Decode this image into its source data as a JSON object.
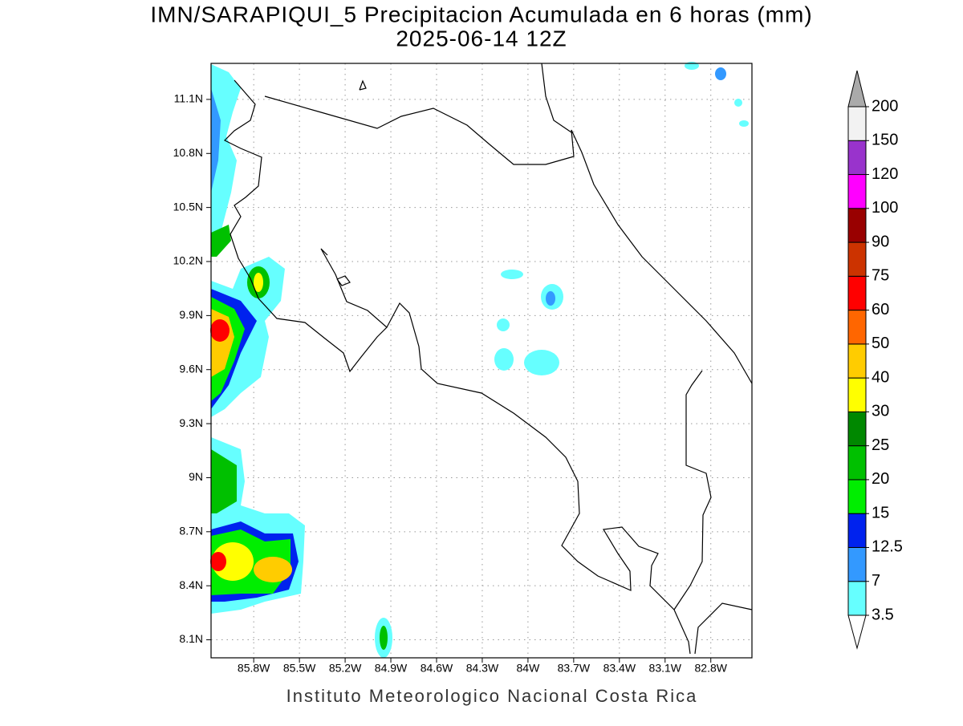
{
  "title": "IMN/SARAPIQUI_5 Precipitacion Acumulada en 6 horas (mm)",
  "subtitle": "2025-06-14 12Z",
  "footer": "Instituto Meteorologico Nacional Costa Rica",
  "map": {
    "lonlim": [
      -86.08,
      -82.53
    ],
    "latlim": [
      8.0,
      11.3
    ],
    "lon_ticks": [
      {
        "value": -85.8,
        "label": "85.8W"
      },
      {
        "value": -85.5,
        "label": "85.5W"
      },
      {
        "value": -85.2,
        "label": "85.2W"
      },
      {
        "value": -84.9,
        "label": "84.9W"
      },
      {
        "value": -84.6,
        "label": "84.6W"
      },
      {
        "value": -84.3,
        "label": "84.3W"
      },
      {
        "value": -84.0,
        "label": "84W"
      },
      {
        "value": -83.7,
        "label": "83.7W"
      },
      {
        "value": -83.4,
        "label": "83.4W"
      },
      {
        "value": -83.1,
        "label": "83.1W"
      },
      {
        "value": -82.8,
        "label": "82.8W"
      }
    ],
    "lat_ticks": [
      {
        "value": 11.1,
        "label": "11.1N"
      },
      {
        "value": 10.8,
        "label": "10.8N"
      },
      {
        "value": 10.5,
        "label": "10.5N"
      },
      {
        "value": 10.2,
        "label": "10.2N"
      },
      {
        "value": 9.9,
        "label": "9.9N"
      },
      {
        "value": 9.6,
        "label": "9.6N"
      },
      {
        "value": 9.3,
        "label": "9.3N"
      },
      {
        "value": 9.0,
        "label": "9N"
      },
      {
        "value": 8.7,
        "label": "8.7N"
      },
      {
        "value": 8.4,
        "label": "8.4N"
      },
      {
        "value": 8.1,
        "label": "8.1N"
      }
    ]
  },
  "colorbar": {
    "levels": [
      3.5,
      7,
      12.5,
      15,
      20,
      25,
      30,
      40,
      50,
      60,
      75,
      90,
      100,
      120,
      150,
      200
    ],
    "colors": [
      "#ffffff",
      "#66ffff",
      "#3399ff",
      "#0022ee",
      "#00ee00",
      "#00c000",
      "#008800",
      "#ffff00",
      "#ffcc00",
      "#ff6600",
      "#ff0000",
      "#cc3300",
      "#990000",
      "#ff00ff",
      "#9933cc",
      "#f2f2f2",
      "#aaaaaa"
    ]
  }
}
